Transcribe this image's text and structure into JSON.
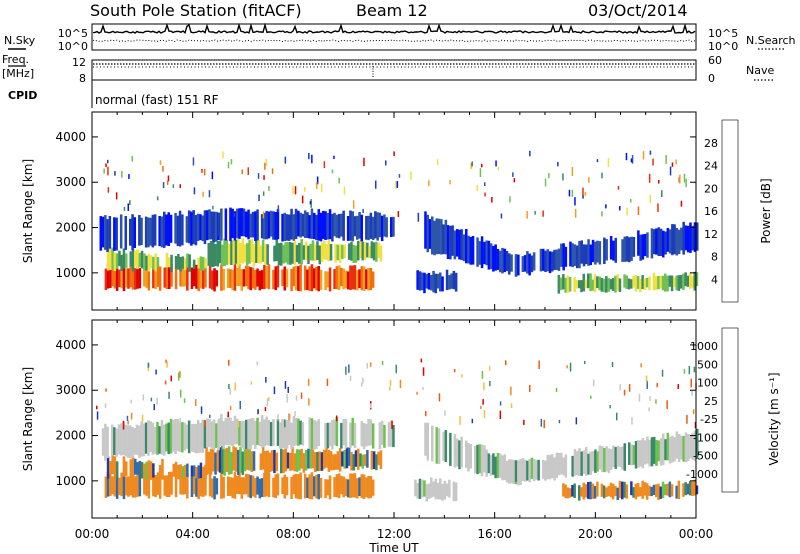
{
  "header": {
    "title": "South Pole Station (fitACF)",
    "beam": "Beam 12",
    "date": "03/Oct/2014"
  },
  "top_panels": {
    "nsky_label": "N.Sky",
    "nsearch_label": "N.Search",
    "noise_ticks_left": [
      "10^5",
      "10^0"
    ],
    "noise_ticks_right": [
      "10^5",
      "10^0"
    ],
    "freq_label_1": "Freq.",
    "freq_label_2": "[MHz]",
    "freq_ticks": [
      "12",
      "8"
    ],
    "nave_label": "Nave",
    "nave_ticks": [
      "60",
      "0"
    ],
    "cpid_label": "CPID",
    "cpid_text": "normal (fast) 151 RF"
  },
  "chart_data": [
    {
      "type": "heatmap",
      "name": "power",
      "ylabel": "Slant Range [km]",
      "ylim": [
        180,
        4550
      ],
      "yticks": [
        1000,
        2000,
        3000,
        4000
      ],
      "xlim_hours": [
        0,
        24
      ],
      "xticks": [
        "00:00",
        "04:00",
        "08:00",
        "12:00",
        "16:00",
        "20:00",
        "00:00"
      ],
      "colorbar": {
        "label": "Power [dB]",
        "ticks": [
          "4",
          "8",
          "12",
          "16",
          "20",
          "24",
          "28"
        ],
        "colors": [
          "#0010ff",
          "#1c3cb8",
          "#2d56a8",
          "#3c8a64",
          "#6fc057",
          "#f0e040",
          "#f2a020",
          "#f07010",
          "#e83010",
          "#e00000"
        ]
      }
    },
    {
      "type": "heatmap",
      "name": "velocity",
      "xlabel": "Time UT",
      "ylabel": "Slant Range [km]",
      "ylim": [
        180,
        4550
      ],
      "yticks": [
        1000,
        2000,
        3000,
        4000
      ],
      "xlim_hours": [
        0,
        24
      ],
      "xticks": [
        "00:00",
        "04:00",
        "08:00",
        "12:00",
        "16:00",
        "20:00",
        "00:00"
      ],
      "colorbar": {
        "label": "Velocity [m s⁻¹]",
        "ticks": [
          "1000",
          "500",
          "100",
          "25",
          "-25",
          "-100",
          "-500",
          "-1000"
        ],
        "colors": [
          "#1f3aa8",
          "#2d6cb0",
          "#3a8a6a",
          "#6cc24a",
          "#c8c8c8",
          "#c8c8c8",
          "#f5c040",
          "#f08a20",
          "#f05a10",
          "#e00000"
        ]
      }
    }
  ],
  "colors": {
    "ground_scatter": "#c8c8c8",
    "frame": "#000000"
  }
}
